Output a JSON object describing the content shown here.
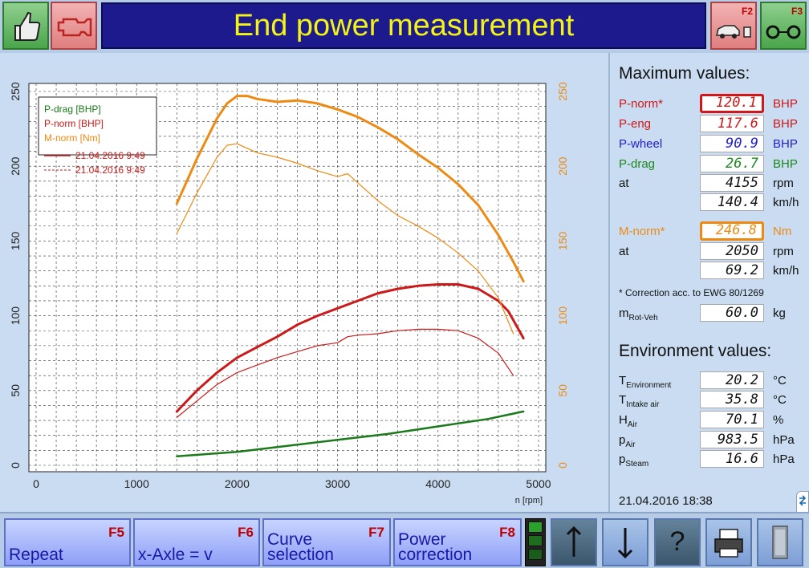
{
  "header": {
    "title": "End power measurement",
    "f2_key": "F2",
    "f3_key": "F3",
    "accent": "#f3f316",
    "title_bg": "#1c1a8c"
  },
  "chart_data": {
    "type": "line",
    "xlabel": "n [rpm]",
    "xlim": [
      0,
      5000
    ],
    "ylim_left": [
      0,
      250
    ],
    "ylim_right": [
      0,
      250
    ],
    "x_ticks": [
      0,
      1000,
      2000,
      3000,
      4000,
      5000
    ],
    "y_ticks_left": [
      0,
      50,
      100,
      150,
      200,
      250
    ],
    "y_ticks_right": [
      0,
      50,
      100,
      150,
      200,
      250
    ],
    "grid": true,
    "legend": {
      "position": "top-left",
      "entries": [
        "P-drag [BHP]",
        "P-norm [BHP]",
        "M-norm [Nm]"
      ],
      "line_entries": [
        {
          "style": "solid",
          "label": "21.04.2016 9:49"
        },
        {
          "style": "dashed",
          "label": "21.04.2016 9:49"
        }
      ]
    },
    "series": [
      {
        "name": "P-drag [BHP]",
        "color": "#1a7a1a",
        "width": 2.5,
        "x": [
          1400,
          2000,
          2500,
          3000,
          3500,
          4000,
          4500,
          4850
        ],
        "y": [
          6,
          9,
          13,
          17,
          21,
          26,
          31,
          36
        ]
      },
      {
        "name": "P-norm [BHP]",
        "color": "#cc1a1a",
        "width": 3,
        "x": [
          1400,
          1600,
          1800,
          2000,
          2200,
          2400,
          2600,
          2800,
          3000,
          3200,
          3400,
          3600,
          3800,
          4000,
          4200,
          4400,
          4600,
          4700,
          4850
        ],
        "y": [
          36,
          50,
          62,
          72,
          79,
          86,
          94,
          100,
          105,
          110,
          115,
          118,
          120,
          121,
          121,
          118,
          110,
          103,
          85
        ]
      },
      {
        "name": "P-norm second run",
        "color": "#cc1a1a",
        "width": 1.2,
        "x": [
          1400,
          1600,
          1800,
          2000,
          2200,
          2400,
          2600,
          2800,
          3000,
          3100,
          3200,
          3400,
          3600,
          3800,
          4000,
          4200,
          4400,
          4600,
          4750
        ],
        "y": [
          32,
          43,
          54,
          62,
          67,
          72,
          76,
          80,
          82,
          86,
          87,
          88,
          90,
          91,
          91,
          90,
          85,
          75,
          60
        ]
      },
      {
        "name": "M-norm [Nm]",
        "color": "#ee8a12",
        "width": 3,
        "x": [
          1400,
          1600,
          1800,
          1900,
          2000,
          2100,
          2200,
          2400,
          2600,
          2800,
          3000,
          3200,
          3400,
          3600,
          3800,
          4000,
          4200,
          4400,
          4600,
          4750,
          4850
        ],
        "y": [
          175,
          205,
          232,
          242,
          247,
          247,
          245,
          243,
          244,
          242,
          238,
          233,
          226,
          218,
          208,
          199,
          188,
          174,
          154,
          136,
          123
        ]
      },
      {
        "name": "M-norm second run",
        "color": "#ee8a12",
        "width": 1.2,
        "x": [
          1400,
          1600,
          1800,
          1900,
          2000,
          2100,
          2200,
          2400,
          2600,
          2800,
          3000,
          3100,
          3200,
          3400,
          3600,
          3800,
          4000,
          4200,
          4400,
          4600,
          4750
        ],
        "y": [
          155,
          182,
          206,
          214,
          215,
          212,
          209,
          206,
          202,
          197,
          193,
          195,
          189,
          177,
          167,
          160,
          152,
          142,
          130,
          112,
          88
        ]
      }
    ]
  },
  "max_values": {
    "title": "Maximum values:",
    "rows": [
      {
        "label": "P-norm*",
        "value": "120.1",
        "unit": "BHP"
      },
      {
        "label": "P-eng",
        "value": "117.6",
        "unit": "BHP"
      },
      {
        "label": "P-wheel",
        "value": "90.9",
        "unit": "BHP"
      },
      {
        "label": "P-drag",
        "value": "26.7",
        "unit": "BHP"
      },
      {
        "label": "at",
        "value": "4155",
        "unit": "rpm"
      },
      {
        "label": "",
        "value": "140.4",
        "unit": "km/h"
      },
      {
        "label": "M-norm*",
        "value": "246.8",
        "unit": "Nm"
      },
      {
        "label": "at",
        "value": "2050",
        "unit": "rpm"
      },
      {
        "label": "",
        "value": "69.2",
        "unit": "km/h"
      }
    ],
    "note": "* Correction acc. to EWG 80/1269",
    "mass": {
      "label": "m",
      "sub": "Rot-Veh",
      "value": "60.0",
      "unit": "kg"
    }
  },
  "env_values": {
    "title": "Environment values:",
    "rows": [
      {
        "label": "T",
        "sub": "Environment",
        "value": "20.2",
        "unit": "°C"
      },
      {
        "label": "T",
        "sub": "Intake air",
        "value": "35.8",
        "unit": "°C"
      },
      {
        "label": "H",
        "sub": "Air",
        "value": "70.1",
        "unit": "%"
      },
      {
        "label": "p",
        "sub": "Air",
        "value": "983.5",
        "unit": "hPa"
      },
      {
        "label": "p",
        "sub": "Steam",
        "value": "16.6",
        "unit": "hPa"
      }
    ]
  },
  "datetime": "21.04.2016   18:38",
  "footer": {
    "repeat": {
      "label": "Repeat",
      "key": "F5"
    },
    "xaxle": {
      "label": "x-Axle = v",
      "key": "F6"
    },
    "curve": {
      "label": "Curve\nselection",
      "key": "F7"
    },
    "power": {
      "label": "Power\ncorrection",
      "key": "F8"
    }
  }
}
